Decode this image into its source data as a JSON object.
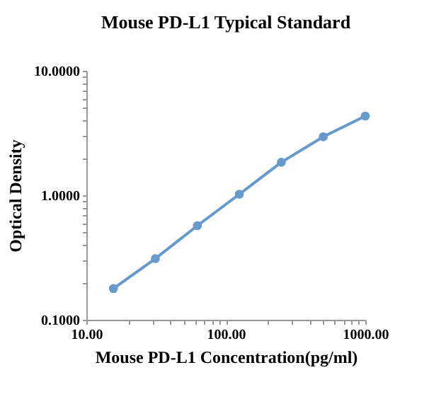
{
  "chart_data": {
    "type": "line",
    "title": "Mouse PD-L1 Typical Standard",
    "xlabel": "Mouse PD-L1 Concentration(pg/ml)",
    "ylabel": "Optical Density",
    "x": [
      15.625,
      31.25,
      62.5,
      125,
      250,
      500,
      1000
    ],
    "series": [
      {
        "color": "#6699cc",
        "values": [
          0.178,
          0.31,
          0.57,
          1.02,
          1.84,
          2.95,
          4.33
        ]
      }
    ],
    "log": "xy",
    "marker": "circle",
    "line_style": "solid",
    "xlim": [
      10,
      1000
    ],
    "ylim": [
      0.1,
      10
    ],
    "xticks": [
      {
        "value": 10,
        "label": "10.00"
      },
      {
        "value": 20,
        "label": null
      },
      {
        "value": 30,
        "label": null
      },
      {
        "value": 40,
        "label": null
      },
      {
        "value": 50,
        "label": null
      },
      {
        "value": 60,
        "label": null
      },
      {
        "value": 70,
        "label": null
      },
      {
        "value": 80,
        "label": null
      },
      {
        "value": 90,
        "label": null
      },
      {
        "value": 100,
        "label": "100.00"
      },
      {
        "value": 200,
        "label": null
      },
      {
        "value": 300,
        "label": null
      },
      {
        "value": 400,
        "label": null
      },
      {
        "value": 500,
        "label": null
      },
      {
        "value": 600,
        "label": null
      },
      {
        "value": 700,
        "label": null
      },
      {
        "value": 800,
        "label": null
      },
      {
        "value": 900,
        "label": null
      },
      {
        "value": 1000,
        "label": "1000.00"
      }
    ],
    "yticks": [
      {
        "value": 0.1,
        "label": "0.1000"
      },
      {
        "value": 0.2,
        "label": null
      },
      {
        "value": 0.3,
        "label": null
      },
      {
        "value": 0.4,
        "label": null
      },
      {
        "value": 0.5,
        "label": null
      },
      {
        "value": 0.6,
        "label": null
      },
      {
        "value": 0.7,
        "label": null
      },
      {
        "value": 0.8,
        "label": null
      },
      {
        "value": 0.9,
        "label": null
      },
      {
        "value": 1,
        "label": "1.0000"
      },
      {
        "value": 2,
        "label": null
      },
      {
        "value": 3,
        "label": null
      },
      {
        "value": 4,
        "label": null
      },
      {
        "value": 5,
        "label": null
      },
      {
        "value": 6,
        "label": null
      },
      {
        "value": 7,
        "label": null
      },
      {
        "value": 8,
        "label": null
      },
      {
        "value": 9,
        "label": null
      },
      {
        "value": 10,
        "label": "10.0000"
      }
    ]
  }
}
